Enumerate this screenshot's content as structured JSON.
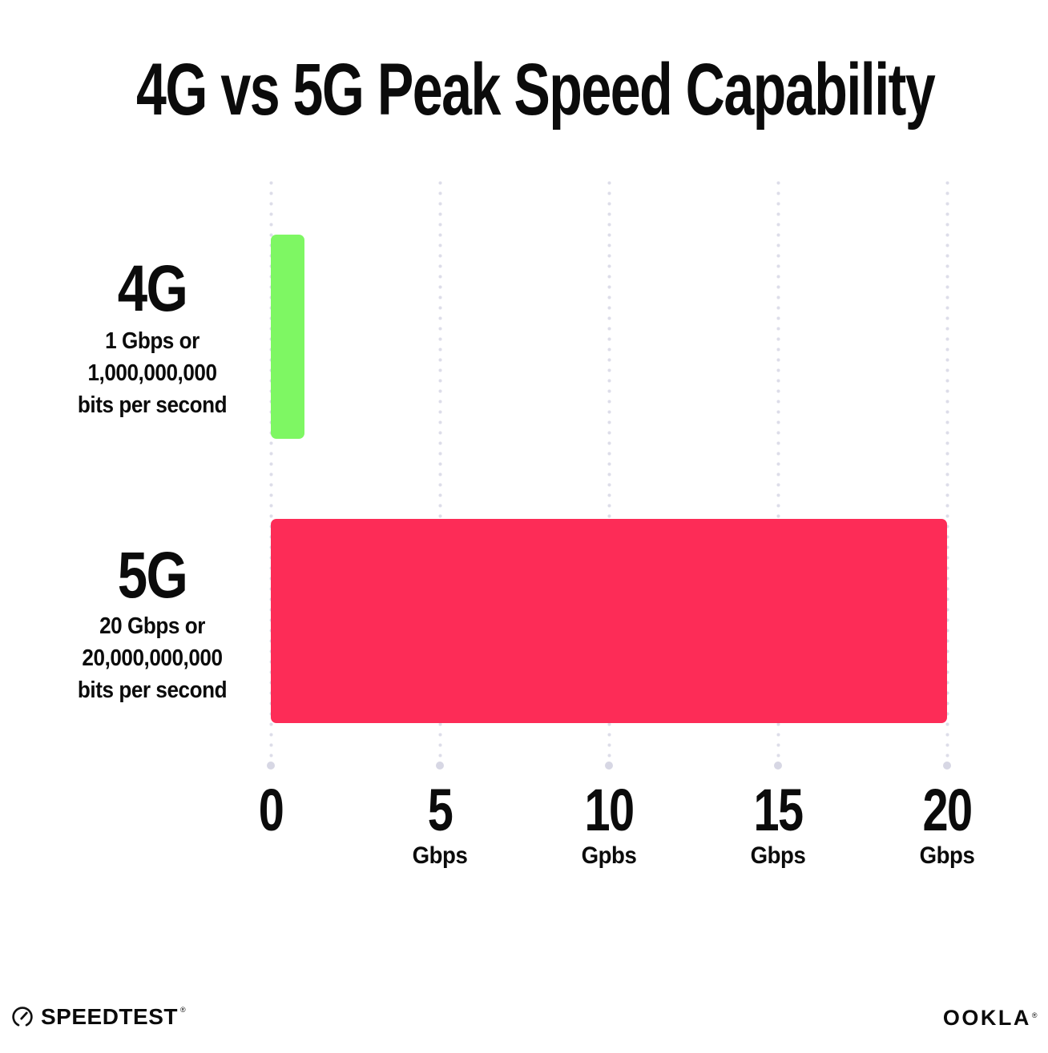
{
  "title": "4G vs 5G Peak Speed Capability",
  "chart_data": {
    "type": "bar",
    "orientation": "horizontal",
    "title": "4G vs 5G Peak Speed Capability",
    "x_axis": {
      "min": 0,
      "max": 20,
      "grid": "dotted-vertical",
      "ticks": [
        {
          "value": 0,
          "label": "0",
          "unit": ""
        },
        {
          "value": 5,
          "label": "5",
          "unit": "Gbps"
        },
        {
          "value": 10,
          "label": "10",
          "unit": "Gpbs"
        },
        {
          "value": 15,
          "label": "15",
          "unit": "Gbps"
        },
        {
          "value": 20,
          "label": "20",
          "unit": "Gbps"
        }
      ]
    },
    "bars": [
      {
        "category": "4G",
        "sublabel_lines": [
          "1 Gbps or",
          "1,000,000,000",
          "bits per second"
        ],
        "value": 1,
        "color": "#7EF763"
      },
      {
        "category": "5G",
        "sublabel_lines": [
          "20 Gbps or",
          "20,000,000,000",
          "bits per second"
        ],
        "value": 20,
        "color": "#FD2C57"
      }
    ],
    "legend": "none"
  },
  "footer": {
    "speedtest_wordmark": "SPEEDTEST",
    "speedtest_trademark": "®",
    "ookla_wordmark": "OOKLA",
    "ookla_trademark": "®"
  },
  "colors": {
    "background": "#FFFFFF",
    "text": "#0B0B0B",
    "grid_dot": "#DDDDE9",
    "grid_end_dot": "#D7D7E4",
    "bar_4g": "#7EF763",
    "bar_5g": "#FD2C57"
  }
}
